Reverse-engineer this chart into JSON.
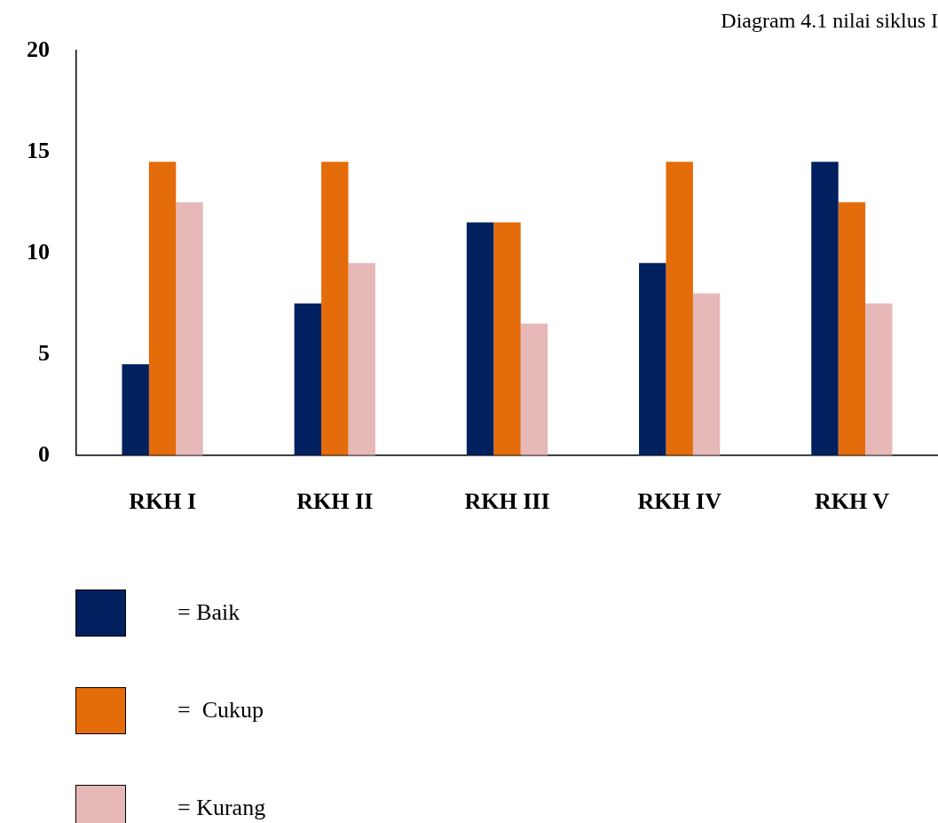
{
  "chart_data": {
    "type": "bar",
    "title": "Diagram 4.1 nilai siklus I",
    "categories": [
      "RKH I",
      "RKH II",
      "RKH III",
      "RKH IV",
      "RKH V"
    ],
    "series": [
      {
        "name": "= Baik",
        "color": "#002060",
        "values": [
          4.5,
          7.5,
          11.5,
          9.5,
          14.5
        ]
      },
      {
        "name": "=  Cukup",
        "color": "#e46c0a",
        "values": [
          14.5,
          14.5,
          11.5,
          14.5,
          12.5
        ]
      },
      {
        "name": "= Kurang",
        "color": "#e6b9b8",
        "values": [
          12.5,
          9.5,
          6.5,
          8,
          7.5
        ]
      }
    ],
    "ylim": [
      0,
      20
    ],
    "yticks": [
      0,
      5,
      10,
      15,
      20
    ],
    "grid": false,
    "legend": "bottom left"
  }
}
